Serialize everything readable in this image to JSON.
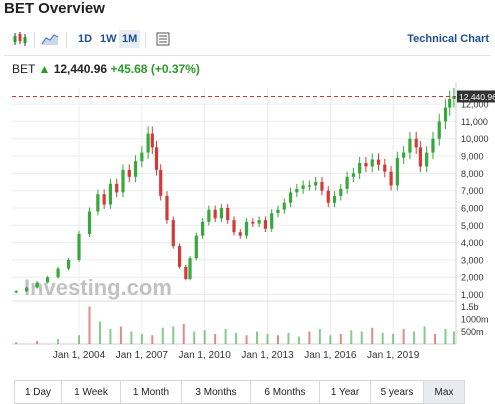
{
  "title": "BET Overview",
  "toolbar": {
    "candles_icon": "candlestick-icon",
    "area_icon": "area-chart-icon",
    "intervals": [
      "1D",
      "1W",
      "1M"
    ],
    "active_interval": "1M",
    "settings_icon": "chart-settings-icon",
    "technical_label": "Technical Chart"
  },
  "quote": {
    "name": "BET",
    "arrow": "▲",
    "price": "12,440.96",
    "change": "+45.68",
    "change_pct": "(+0.37%)",
    "up_color": "#2a9a2a"
  },
  "chart_data": {
    "type": "candlestick",
    "series": [
      {
        "x": [
          2001.0,
          2001.5,
          2002.0,
          2002.5,
          2003.0,
          2003.5,
          2004.0,
          2004.5,
          2004.9,
          2005.2,
          2005.5,
          2005.8,
          2006.1,
          2006.4,
          2006.7,
          2007.0,
          2007.3,
          2007.5,
          2007.7,
          2007.9,
          2008.2,
          2008.5,
          2008.8,
          2009.1,
          2009.3,
          2009.6,
          2009.9,
          2010.2,
          2010.5,
          2010.8,
          2011.1,
          2011.4,
          2011.7,
          2012.0,
          2012.3,
          2012.6,
          2012.9,
          2013.2,
          2013.5,
          2013.8,
          2014.1,
          2014.4,
          2014.7,
          2015.0,
          2015.3,
          2015.6,
          2015.9,
          2016.2,
          2016.5,
          2016.8,
          2017.1,
          2017.4,
          2017.7,
          2018.0,
          2018.3,
          2018.6,
          2018.9,
          2019.2,
          2019.5,
          2019.8,
          2020.1,
          2020.3,
          2020.6,
          2020.9,
          2021.2,
          2021.5,
          2021.7,
          2021.9
        ],
        "y": [
          1200,
          1400,
          1700,
          2000,
          2500,
          3000,
          4500,
          5800,
          6800,
          6200,
          7400,
          6900,
          8200,
          7800,
          8700,
          9200,
          10300,
          9500,
          8200,
          6700,
          5300,
          3800,
          2600,
          1900,
          3100,
          4400,
          5200,
          5900,
          5400,
          6000,
          5300,
          4600,
          4400,
          5200,
          5100,
          5300,
          4800,
          5700,
          5900,
          6300,
          6900,
          7100,
          7300,
          7300,
          7500,
          7000,
          6300,
          6700,
          7100,
          7800,
          8000,
          8600,
          8400,
          8800,
          8500,
          8100,
          7300,
          8900,
          9200,
          10000,
          9500,
          8400,
          9200,
          10000,
          11000,
          11800,
          12300,
          12441
        ],
        "name": "BET"
      }
    ],
    "volume_x": [
      2001.0,
      2002.0,
      2003.0,
      2004.0,
      2004.5,
      2005.0,
      2005.5,
      2006.0,
      2006.5,
      2007.0,
      2007.5,
      2008.0,
      2008.5,
      2009.0,
      2009.5,
      2010.0,
      2010.5,
      2011.0,
      2011.5,
      2012.0,
      2012.5,
      2013.0,
      2013.5,
      2014.0,
      2014.5,
      2015.0,
      2015.5,
      2016.0,
      2016.5,
      2017.0,
      2017.5,
      2018.0,
      2018.5,
      2019.0,
      2019.5,
      2020.0,
      2020.5,
      2021.0,
      2021.5,
      2021.9
    ],
    "volume": [
      80,
      120,
      200,
      350,
      1500,
      900,
      600,
      700,
      500,
      400,
      350,
      650,
      700,
      800,
      500,
      550,
      400,
      600,
      450,
      350,
      500,
      400,
      350,
      450,
      300,
      500,
      600,
      350,
      400,
      550,
      500,
      650,
      450,
      400,
      600,
      500,
      700,
      400,
      600,
      500
    ],
    "xaxis_ticks": [
      "Jan 1, 2004",
      "Jan 1, 2007",
      "Jan 1, 2010",
      "Jan 1, 2013",
      "Jan 1, 2016",
      "Jan 1, 2019"
    ],
    "xaxis_tick_values": [
      2004,
      2007,
      2010,
      2013,
      2016,
      2019
    ],
    "xlim": [
      2000.8,
      2022.0
    ],
    "yaxis_ticks": [
      "1,000",
      "2,000",
      "3,000",
      "4,000",
      "5,000",
      "6,000",
      "7,000",
      "8,000",
      "9,000",
      "10,000",
      "11,000",
      "12,000"
    ],
    "yaxis_tick_values": [
      1000,
      2000,
      3000,
      4000,
      5000,
      6000,
      7000,
      8000,
      9000,
      10000,
      11000,
      12000
    ],
    "ylim": [
      800,
      12700
    ],
    "volume_ticks": [
      "1.5b",
      "1000m",
      "500m"
    ],
    "volume_tick_values": [
      1500,
      1000,
      500
    ],
    "last_price_label": "12,440.96",
    "last_price": 12440.96,
    "watermark": "Investing.com",
    "up_color": "#37a83b",
    "down_color": "#d23a3a",
    "grid": true
  },
  "ranges": [
    "1 Day",
    "1 Week",
    "1 Month",
    "3 Months",
    "6 Months",
    "1 Year",
    "5 years",
    "Max"
  ],
  "active_range": "Max"
}
